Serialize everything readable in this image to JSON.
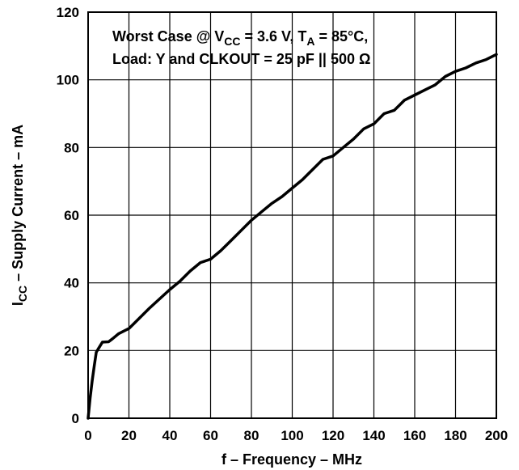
{
  "chart_data": {
    "type": "line",
    "xlabel": "f – Frequency – MHz",
    "ylabel": {
      "main": "I",
      "sub": "CC",
      "rest": "– Supply Current – mA"
    },
    "xlim": [
      0,
      200
    ],
    "ylim": [
      0,
      120
    ],
    "x_ticks": [
      0,
      20,
      40,
      60,
      80,
      100,
      120,
      140,
      160,
      180,
      200
    ],
    "y_ticks": [
      0,
      20,
      40,
      60,
      80,
      100,
      120
    ],
    "grid": true,
    "annotation": {
      "line1": {
        "a": "Worst Case @ V",
        "a_sub": "CC",
        "b": " = 3.6 V, T",
        "b_sub": "A",
        "c": " = 85°C,"
      },
      "line2": "Load: Y and CLKOUT = 25 pF || 500 Ω"
    },
    "series": [
      {
        "x": [
          0,
          1,
          2,
          3,
          4,
          5,
          7,
          10,
          12,
          15,
          20,
          25,
          30,
          40,
          45,
          50,
          55,
          60,
          65,
          70,
          75,
          80,
          85,
          90,
          95,
          100,
          105,
          110,
          115,
          120,
          125,
          130,
          135,
          140,
          145,
          150,
          155,
          160,
          165,
          170,
          175,
          180,
          185,
          190,
          195,
          200
        ],
        "y": [
          0,
          6,
          11,
          15.5,
          19.5,
          20.5,
          22.5,
          22.6,
          23.5,
          25,
          26.5,
          29.5,
          32.5,
          38,
          40.5,
          43.5,
          46,
          47,
          49.5,
          52.5,
          55.5,
          58.5,
          61,
          63.5,
          65.5,
          68,
          70.5,
          73.5,
          76.5,
          77.5,
          80,
          82.5,
          85.5,
          87,
          90,
          91,
          94,
          95.5,
          97,
          98.5,
          101,
          102.5,
          103.5,
          105,
          106,
          107.5
        ]
      }
    ]
  }
}
